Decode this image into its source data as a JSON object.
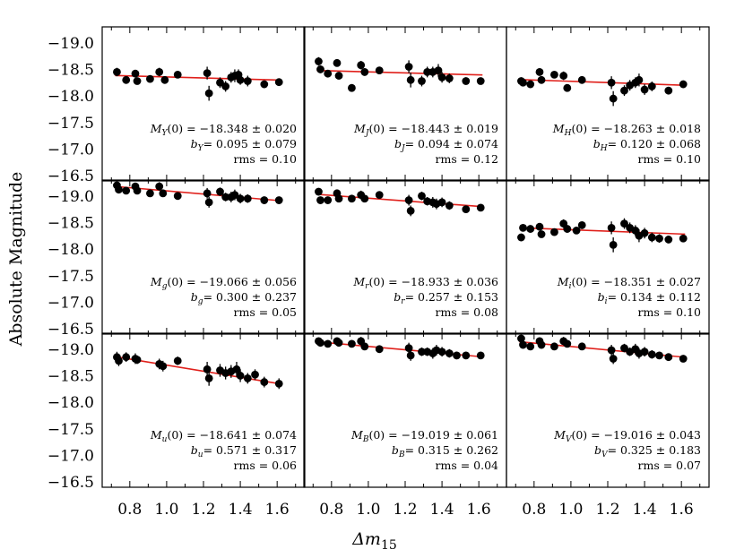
{
  "chart_data": {
    "type": "scatter",
    "xlabel": "Δm",
    "xlabel_sub": "15",
    "ylabel": "Absolute Magnitude",
    "xlim": [
      0.65,
      1.75
    ],
    "ylim": [
      -16.4,
      -19.3
    ],
    "x_ticks": [
      0.8,
      1.0,
      1.2,
      1.4,
      1.6
    ],
    "x_tick_labels": [
      "0.8",
      "1.0",
      "1.2",
      "1.4",
      "1.6"
    ],
    "y_ticks": [
      -19.0,
      -18.5,
      -18.0,
      -17.5,
      -17.0,
      -16.5
    ],
    "y_tick_labels": [
      "−19.0",
      "−18.5",
      "−18.0",
      "−17.5",
      "−17.0",
      "−16.5"
    ],
    "fit_color": "#e0201b",
    "point_color": "#000000",
    "panels": [
      {
        "band": "Y",
        "M0": -18.348,
        "b": 0.095,
        "m0_label": "(0) = −18.348 ± 0.020",
        "b_label": "= 0.095 ± 0.079",
        "rms_label": "rms = 0.10",
        "x": [
          0.73,
          0.78,
          0.83,
          0.84,
          0.91,
          0.96,
          0.99,
          1.06,
          1.22,
          1.23,
          1.29,
          1.32,
          1.35,
          1.37,
          1.39,
          1.4,
          1.44,
          1.53,
          1.61
        ],
        "y": [
          -18.45,
          -18.3,
          -18.42,
          -18.28,
          -18.32,
          -18.45,
          -18.3,
          -18.4,
          -18.43,
          -18.05,
          -18.25,
          -18.18,
          -18.35,
          -18.38,
          -18.4,
          -18.3,
          -18.28,
          -18.22,
          -18.26
        ],
        "err": [
          0.08,
          0.06,
          0.07,
          0.06,
          0.06,
          0.08,
          0.07,
          0.06,
          0.12,
          0.14,
          0.1,
          0.1,
          0.1,
          0.12,
          0.1,
          0.09,
          0.1,
          0.07,
          0.06
        ]
      },
      {
        "band": "J",
        "M0": -18.443,
        "b": 0.094,
        "m0_label": "(0) = −18.443 ± 0.019",
        "b_label": "= 0.094 ± 0.074",
        "rms_label": "rms = 0.12",
        "x": [
          0.73,
          0.74,
          0.78,
          0.83,
          0.84,
          0.91,
          0.96,
          0.98,
          1.06,
          1.22,
          1.23,
          1.29,
          1.32,
          1.35,
          1.38,
          1.4,
          1.44,
          1.53,
          1.61
        ],
        "y": [
          -18.65,
          -18.5,
          -18.42,
          -18.62,
          -18.38,
          -18.15,
          -18.58,
          -18.45,
          -18.48,
          -18.55,
          -18.3,
          -18.28,
          -18.45,
          -18.45,
          -18.48,
          -18.35,
          -18.33,
          -18.28,
          -18.28
        ],
        "err": [
          0.08,
          0.07,
          0.06,
          0.07,
          0.06,
          0.06,
          0.08,
          0.07,
          0.06,
          0.12,
          0.14,
          0.1,
          0.1,
          0.1,
          0.12,
          0.1,
          0.09,
          0.07,
          0.06
        ]
      },
      {
        "band": "H",
        "M0": -18.263,
        "b": 0.12,
        "m0_label": "(0) = −18.263 ± 0.018",
        "b_label": "= 0.120 ± 0.068",
        "rms_label": "rms = 0.10",
        "x": [
          0.73,
          0.74,
          0.78,
          0.83,
          0.84,
          0.91,
          0.96,
          0.98,
          1.06,
          1.22,
          1.23,
          1.29,
          1.32,
          1.35,
          1.37,
          1.4,
          1.44,
          1.53,
          1.61
        ],
        "y": [
          -18.28,
          -18.25,
          -18.22,
          -18.45,
          -18.3,
          -18.4,
          -18.38,
          -18.15,
          -18.3,
          -18.25,
          -17.95,
          -18.1,
          -18.2,
          -18.25,
          -18.3,
          -18.12,
          -18.18,
          -18.1,
          -18.22
        ],
        "err": [
          0.07,
          0.06,
          0.06,
          0.07,
          0.06,
          0.06,
          0.08,
          0.07,
          0.06,
          0.12,
          0.14,
          0.1,
          0.1,
          0.1,
          0.12,
          0.1,
          0.09,
          0.07,
          0.06
        ]
      },
      {
        "band": "g",
        "M0": -19.066,
        "b": 0.3,
        "m0_label": "(0) = −19.066 ± 0.056",
        "b_label": "= 0.300 ± 0.237",
        "rms_label": "rms = 0.05",
        "x": [
          0.73,
          0.74,
          0.78,
          0.83,
          0.84,
          0.91,
          0.96,
          0.98,
          1.06,
          1.22,
          1.23,
          1.29,
          1.32,
          1.35,
          1.37,
          1.4,
          1.44,
          1.53,
          1.61
        ],
        "y": [
          -19.2,
          -19.12,
          -19.1,
          -19.18,
          -19.1,
          -19.05,
          -19.18,
          -19.05,
          -19.0,
          -19.05,
          -18.88,
          -19.08,
          -18.98,
          -18.98,
          -19.02,
          -18.95,
          -18.95,
          -18.92,
          -18.92
        ],
        "err": [
          0.06,
          0.06,
          0.05,
          0.07,
          0.05,
          0.05,
          0.08,
          0.07,
          0.05,
          0.1,
          0.1,
          0.08,
          0.08,
          0.1,
          0.1,
          0.09,
          0.08,
          0.07,
          0.06
        ]
      },
      {
        "band": "r",
        "M0": -18.933,
        "b": 0.257,
        "m0_label": "(0) = −18.933 ± 0.036",
        "b_label": "= 0.257 ± 0.153",
        "rms_label": "rms = 0.08",
        "x": [
          0.73,
          0.74,
          0.78,
          0.83,
          0.84,
          0.91,
          0.96,
          0.98,
          1.06,
          1.22,
          1.23,
          1.29,
          1.32,
          1.35,
          1.37,
          1.4,
          1.44,
          1.53,
          1.61
        ],
        "y": [
          -19.08,
          -18.92,
          -18.92,
          -19.05,
          -18.95,
          -18.95,
          -19.02,
          -18.95,
          -19.02,
          -18.92,
          -18.72,
          -19.0,
          -18.9,
          -18.88,
          -18.85,
          -18.88,
          -18.82,
          -18.75,
          -18.78
        ],
        "err": [
          0.06,
          0.06,
          0.05,
          0.07,
          0.05,
          0.05,
          0.08,
          0.07,
          0.05,
          0.1,
          0.1,
          0.08,
          0.08,
          0.1,
          0.1,
          0.09,
          0.08,
          0.07,
          0.06
        ]
      },
      {
        "band": "i",
        "M0": -18.351,
        "b": 0.134,
        "m0_label": "(0) = −18.351 ± 0.027",
        "b_label": "= 0.134 ± 0.112",
        "rms_label": "rms = 0.10",
        "x": [
          0.73,
          0.74,
          0.78,
          0.83,
          0.84,
          0.91,
          0.96,
          0.98,
          1.03,
          1.06,
          1.22,
          1.23,
          1.29,
          1.32,
          1.35,
          1.37,
          1.4,
          1.44,
          1.48,
          1.53,
          1.61
        ],
        "y": [
          -18.22,
          -18.4,
          -18.38,
          -18.42,
          -18.28,
          -18.32,
          -18.48,
          -18.38,
          -18.35,
          -18.45,
          -18.4,
          -18.08,
          -18.48,
          -18.4,
          -18.35,
          -18.25,
          -18.3,
          -18.22,
          -18.2,
          -18.18,
          -18.2
        ],
        "err": [
          0.07,
          0.06,
          0.06,
          0.07,
          0.06,
          0.06,
          0.08,
          0.07,
          0.06,
          0.06,
          0.12,
          0.14,
          0.1,
          0.1,
          0.1,
          0.12,
          0.1,
          0.09,
          0.08,
          0.07,
          0.06
        ]
      },
      {
        "band": "u",
        "M0": -18.641,
        "b": 0.571,
        "m0_label": "(0) = −18.641 ± 0.074",
        "b_label": "= 0.571 ± 0.317",
        "rms_label": "rms = 0.06",
        "x": [
          0.73,
          0.74,
          0.78,
          0.83,
          0.84,
          0.96,
          0.98,
          1.06,
          1.22,
          1.23,
          1.29,
          1.32,
          1.35,
          1.38,
          1.4,
          1.44,
          1.48,
          1.53,
          1.61
        ],
        "y": [
          -18.85,
          -18.78,
          -18.85,
          -18.82,
          -18.8,
          -18.72,
          -18.68,
          -18.78,
          -18.62,
          -18.45,
          -18.6,
          -18.55,
          -18.58,
          -18.62,
          -18.5,
          -18.45,
          -18.52,
          -18.38,
          -18.35
        ],
        "err": [
          0.1,
          0.1,
          0.09,
          0.1,
          0.08,
          0.1,
          0.1,
          0.08,
          0.14,
          0.14,
          0.12,
          0.12,
          0.12,
          0.14,
          0.12,
          0.1,
          0.1,
          0.1,
          0.1
        ]
      },
      {
        "band": "B",
        "M0": -19.019,
        "b": 0.315,
        "m0_label": "(0) = −19.019 ± 0.061",
        "b_label": "= 0.315 ± 0.262",
        "rms_label": "rms = 0.04",
        "x": [
          0.73,
          0.74,
          0.78,
          0.83,
          0.84,
          0.91,
          0.96,
          0.98,
          1.06,
          1.22,
          1.23,
          1.29,
          1.32,
          1.35,
          1.37,
          1.4,
          1.44,
          1.48,
          1.53,
          1.61
        ],
        "y": [
          -19.15,
          -19.12,
          -19.1,
          -19.15,
          -19.12,
          -19.1,
          -19.15,
          -19.05,
          -19.0,
          -19.02,
          -18.88,
          -18.95,
          -18.95,
          -18.92,
          -18.98,
          -18.95,
          -18.92,
          -18.88,
          -18.88,
          -18.88
        ],
        "err": [
          0.06,
          0.06,
          0.05,
          0.07,
          0.05,
          0.05,
          0.08,
          0.07,
          0.05,
          0.1,
          0.1,
          0.08,
          0.08,
          0.1,
          0.1,
          0.09,
          0.08,
          0.07,
          0.07,
          0.06
        ]
      },
      {
        "band": "V",
        "M0": -19.016,
        "b": 0.325,
        "m0_label": "(0) = −19.016 ± 0.043",
        "b_label": "= 0.325 ± 0.183",
        "rms_label": "rms = 0.07",
        "x": [
          0.73,
          0.74,
          0.78,
          0.83,
          0.84,
          0.91,
          0.96,
          0.98,
          1.06,
          1.22,
          1.23,
          1.29,
          1.32,
          1.35,
          1.37,
          1.4,
          1.44,
          1.48,
          1.53,
          1.61
        ],
        "y": [
          -19.2,
          -19.08,
          -19.05,
          -19.15,
          -19.08,
          -19.05,
          -19.15,
          -19.1,
          -19.05,
          -18.98,
          -18.82,
          -19.02,
          -18.95,
          -19.0,
          -18.92,
          -18.95,
          -18.9,
          -18.88,
          -18.85,
          -18.82
        ],
        "err": [
          0.06,
          0.06,
          0.05,
          0.07,
          0.05,
          0.05,
          0.08,
          0.07,
          0.05,
          0.1,
          0.1,
          0.08,
          0.08,
          0.1,
          0.1,
          0.09,
          0.08,
          0.07,
          0.07,
          0.06
        ]
      }
    ]
  }
}
